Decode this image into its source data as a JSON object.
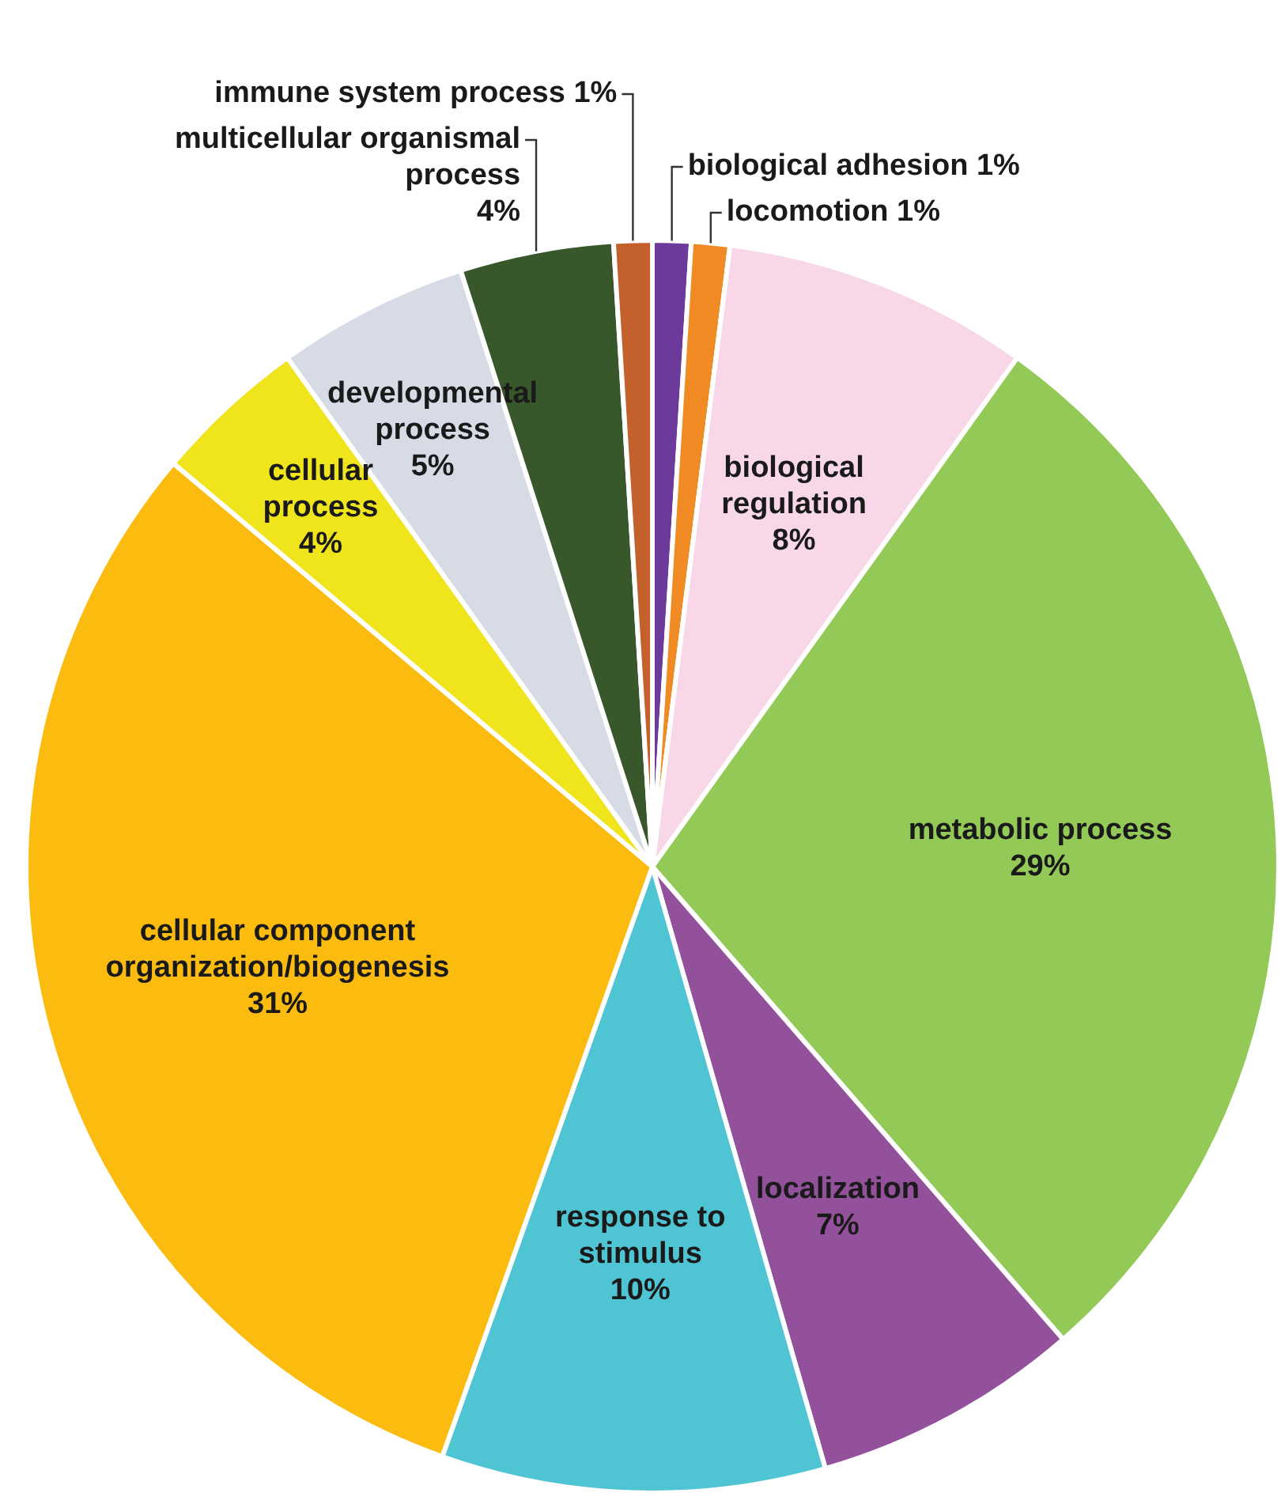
{
  "chart_data": {
    "type": "pie",
    "categories": [
      "biological adhesion",
      "locomotion",
      "biological regulation",
      "metabolic process",
      "localization",
      "response to stimulus",
      "cellular component organization/biogenesis",
      "cellular process",
      "developmental process",
      "multicellular organismal process",
      "immune system process"
    ],
    "values": [
      1,
      1,
      8,
      29,
      7,
      10,
      31,
      4,
      5,
      4,
      1
    ],
    "value_labels": [
      "1%",
      "1%",
      "8%",
      "29%",
      "7%",
      "10%",
      "31%",
      "4%",
      "5%",
      "4%",
      "1%"
    ],
    "colors": [
      "#6b3a9b",
      "#f08a24",
      "#f8d8e8",
      "#93c957",
      "#93519c",
      "#4fc4d3",
      "#fbbc0f",
      "#f0e41c",
      "#d6dbe6",
      "#38572b",
      "#c4602c"
    ],
    "legend": false
  }
}
